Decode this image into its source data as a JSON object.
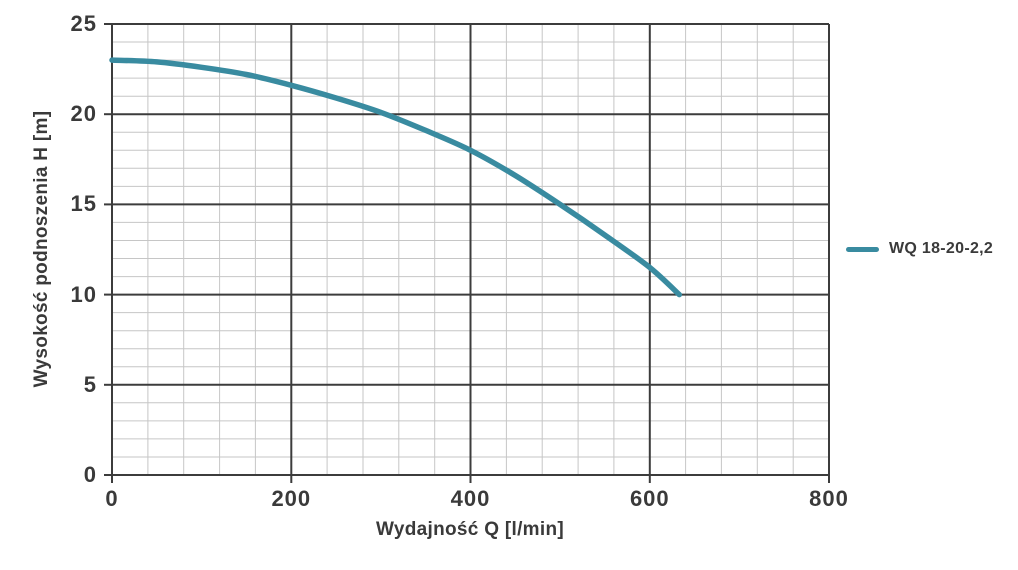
{
  "chart_data": {
    "type": "line",
    "title": "",
    "xlabel": "Wydajność Q [l/min]",
    "ylabel": "Wysokość podnoszenia H [m]",
    "xlim": [
      0,
      800
    ],
    "ylim": [
      0,
      25
    ],
    "x_ticks": [
      0,
      200,
      400,
      600,
      800
    ],
    "y_ticks": [
      0,
      5,
      10,
      15,
      20,
      25
    ],
    "x_minor_step": 40,
    "y_minor_step": 1,
    "grid": "major+minor",
    "legend_position": "right-center",
    "series": [
      {
        "name": "WQ 18-20-2,2",
        "color": "#398ba0",
        "points": [
          [
            0,
            23.0
          ],
          [
            50,
            22.9
          ],
          [
            100,
            22.6
          ],
          [
            150,
            22.2
          ],
          [
            200,
            21.6
          ],
          [
            250,
            20.9
          ],
          [
            300,
            20.1
          ],
          [
            350,
            19.1
          ],
          [
            400,
            18.0
          ],
          [
            450,
            16.6
          ],
          [
            500,
            15.0
          ],
          [
            550,
            13.3
          ],
          [
            600,
            11.5
          ],
          [
            633,
            10.0
          ]
        ]
      }
    ]
  },
  "axes": {
    "x_title": "Wydajność Q [l/min]",
    "y_title": "Wysokość podnoszenia H [m]"
  },
  "legend": {
    "label": "WQ 18-20-2,2"
  },
  "colors": {
    "background": "#ffffff",
    "grid_major": "#3c3c3c",
    "grid_minor": "#c6c6c6",
    "text": "#3a3a3a",
    "curve": "#398ba0"
  }
}
